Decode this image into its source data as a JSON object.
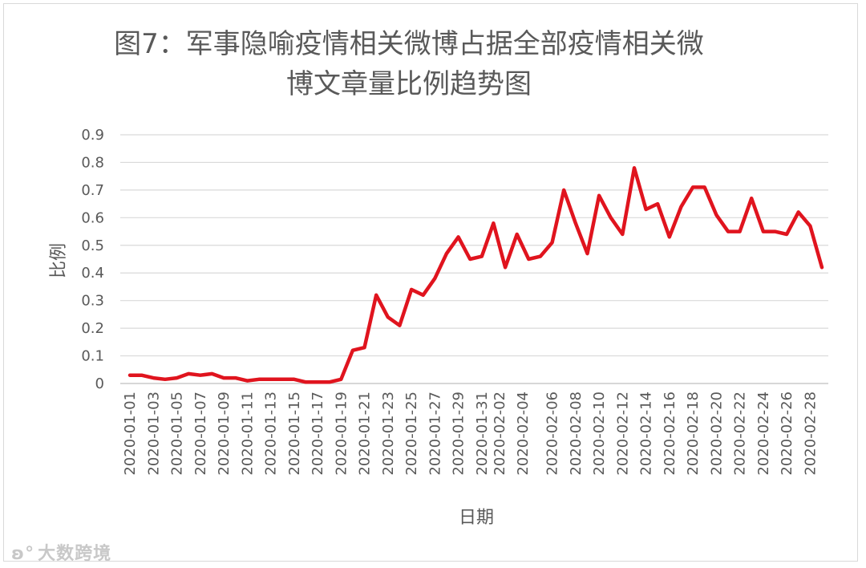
{
  "chart_data": {
    "type": "line",
    "title_line1": "图7：军事隐喻疫情相关微博占据全部疫情相关微",
    "title_line2": "博文章量比例趋势图",
    "xlabel": "日期",
    "ylabel": "比例",
    "ylim": [
      0,
      0.9
    ],
    "yticks": [
      "0",
      "0.1",
      "0.2",
      "0.3",
      "0.4",
      "0.5",
      "0.6",
      "0.7",
      "0.8",
      "0.9"
    ],
    "grid": true,
    "line_color": "#e0141e",
    "x": [
      "2020-01-01",
      "2020-01-02",
      "2020-01-03",
      "2020-01-04",
      "2020-01-05",
      "2020-01-06",
      "2020-01-07",
      "2020-01-08",
      "2020-01-09",
      "2020-01-10",
      "2020-01-11",
      "2020-01-12",
      "2020-01-13",
      "2020-01-14",
      "2020-01-15",
      "2020-01-16",
      "2020-01-17",
      "2020-01-18",
      "2020-01-19",
      "2020-01-20",
      "2020-01-21",
      "2020-01-22",
      "2020-01-23",
      "2020-01-24",
      "2020-01-25",
      "2020-01-26",
      "2020-01-27",
      "2020-01-28",
      "2020-01-29",
      "2020-01-30",
      "2020-01-31",
      "2020-02-01",
      "2020-02-02",
      "2020-02-03",
      "2020-02-04",
      "2020-02-05",
      "2020-02-06",
      "2020-02-07",
      "2020-02-08",
      "2020-02-09",
      "2020-02-10",
      "2020-02-11",
      "2020-02-12",
      "2020-02-13",
      "2020-02-14",
      "2020-02-15",
      "2020-02-16",
      "2020-02-17",
      "2020-02-18",
      "2020-02-19",
      "2020-02-20",
      "2020-02-21",
      "2020-02-22",
      "2020-02-23",
      "2020-02-24",
      "2020-02-25",
      "2020-02-26",
      "2020-02-27",
      "2020-02-28",
      "2020-02-29"
    ],
    "values": [
      0.03,
      0.03,
      0.02,
      0.015,
      0.02,
      0.035,
      0.03,
      0.035,
      0.02,
      0.02,
      0.01,
      0.015,
      0.015,
      0.015,
      0.015,
      0.005,
      0.005,
      0.005,
      0.015,
      0.12,
      0.13,
      0.32,
      0.24,
      0.21,
      0.34,
      0.32,
      0.38,
      0.47,
      0.53,
      0.45,
      0.46,
      0.58,
      0.42,
      0.54,
      0.45,
      0.46,
      0.51,
      0.7,
      0.58,
      0.47,
      0.68,
      0.6,
      0.54,
      0.78,
      0.63,
      0.65,
      0.53,
      0.64,
      0.71,
      0.71,
      0.61,
      0.55,
      0.55,
      0.67,
      0.55,
      0.55,
      0.54,
      0.62,
      0.57,
      0.42
    ],
    "tick_labels": [
      {
        "i": 0,
        "label": "2020-01-01"
      },
      {
        "i": 2,
        "label": "2020-01-03"
      },
      {
        "i": 4,
        "label": "2020-01-05"
      },
      {
        "i": 6,
        "label": "2020-01-07"
      },
      {
        "i": 8,
        "label": "2020-01-09"
      },
      {
        "i": 10,
        "label": "2020-01-11"
      },
      {
        "i": 12,
        "label": "2020-01-13"
      },
      {
        "i": 14,
        "label": "2020-01-15"
      },
      {
        "i": 16,
        "label": "2020-01-17"
      },
      {
        "i": 18,
        "label": "2020-01-19"
      },
      {
        "i": 20,
        "label": "2020-01-21"
      },
      {
        "i": 22,
        "label": "2020-01-23"
      },
      {
        "i": 24,
        "label": "2020-01-25"
      },
      {
        "i": 26,
        "label": "2020-01-27"
      },
      {
        "i": 28,
        "label": "2020-01-29"
      },
      {
        "i": 30,
        "label": "2020-01-31"
      },
      {
        "i": 31.5,
        "label": "2020-02-02"
      },
      {
        "i": 33.5,
        "label": "2020-02-04"
      },
      {
        "i": 36,
        "label": "2020-02-06"
      },
      {
        "i": 38,
        "label": "2020-02-08"
      },
      {
        "i": 40,
        "label": "2020-02-10"
      },
      {
        "i": 42,
        "label": "2020-02-12"
      },
      {
        "i": 44,
        "label": "2020-02-14"
      },
      {
        "i": 46,
        "label": "2020-02-16"
      },
      {
        "i": 48,
        "label": "2020-02-18"
      },
      {
        "i": 50,
        "label": "2020-02-20"
      },
      {
        "i": 52,
        "label": "2020-02-22"
      },
      {
        "i": 54,
        "label": "2020-02-24"
      },
      {
        "i": 56,
        "label": "2020-02-26"
      },
      {
        "i": 58,
        "label": "2020-02-28"
      }
    ]
  },
  "watermark": {
    "text": "大数跨境",
    "icon": "brand-logo-icon"
  }
}
